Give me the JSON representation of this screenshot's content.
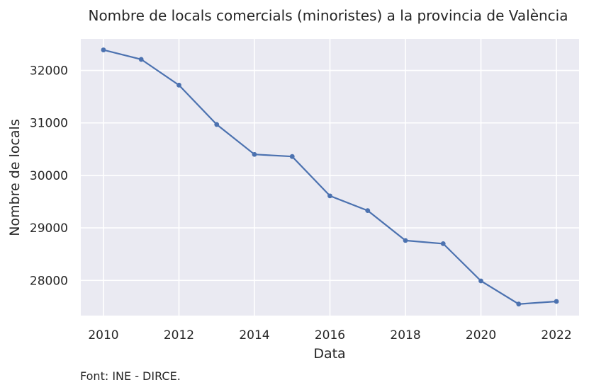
{
  "chart_data": {
    "type": "line",
    "title": "Nombre de locals comercials (minoristes) a la provincia de València",
    "xlabel": "Data",
    "ylabel": "Nombre de locals",
    "source": "Font: INE - DIRCE.",
    "x": [
      2010,
      2011,
      2012,
      2013,
      2014,
      2015,
      2016,
      2017,
      2018,
      2019,
      2020,
      2021,
      2022
    ],
    "series": [
      {
        "values": [
          32390,
          32210,
          31720,
          30970,
          30400,
          30360,
          29610,
          29330,
          28760,
          28700,
          27990,
          27550,
          27600
        ],
        "color": "#4c72b0"
      }
    ],
    "xticks": [
      "2010",
      "2012",
      "2014",
      "2016",
      "2018",
      "2020",
      "2022"
    ],
    "yticks": [
      "28000",
      "29000",
      "30000",
      "31000",
      "32000"
    ],
    "xlim": [
      2009.4,
      2022.6
    ],
    "ylim": [
      27330,
      32600
    ],
    "grid": true,
    "background": "#eaeaf2"
  }
}
